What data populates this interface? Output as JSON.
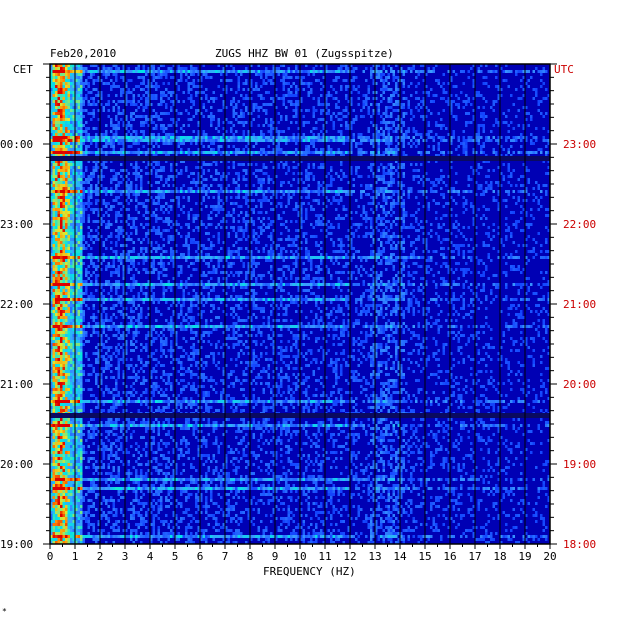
{
  "header": {
    "date": "Feb20,2010",
    "station": "ZUGS HHZ BW 01 (Zugsspitze)"
  },
  "footer_mark": "*",
  "colors": {
    "background": "#0000b4",
    "frame": "#000000",
    "utc_label": "#cc0000",
    "text": "#000000"
  },
  "chart_data": {
    "type": "heatmap",
    "title": "ZUGS HHZ BW 01 (Zugsspitze)",
    "xlabel": "FREQUENCY (HZ)",
    "xlim": [
      0,
      20
    ],
    "x_ticks": [
      "0",
      "1",
      "2",
      "3",
      "4",
      "5",
      "6",
      "7",
      "8",
      "9",
      "10",
      "11",
      "12",
      "13",
      "14",
      "15",
      "16",
      "17",
      "18",
      "19",
      "20"
    ],
    "left_axis": {
      "label": "CET",
      "ticks": [
        "00:00",
        "23:00",
        "22:00",
        "21:00",
        "20:00",
        "19:00"
      ]
    },
    "right_axis": {
      "label": "UTC",
      "ticks": [
        "23:00",
        "22:00",
        "21:00",
        "20:00",
        "19:00",
        "18:00"
      ]
    },
    "colormap": "blue (low) to cyan, yellow, red (high)",
    "features": [
      "strongest energy between 0 and 1 Hz along the whole time span",
      "dark horizontal gaps near 23:00 UTC and 19:40 UTC",
      "moderate energy band near 13-14 Hz"
    ]
  }
}
